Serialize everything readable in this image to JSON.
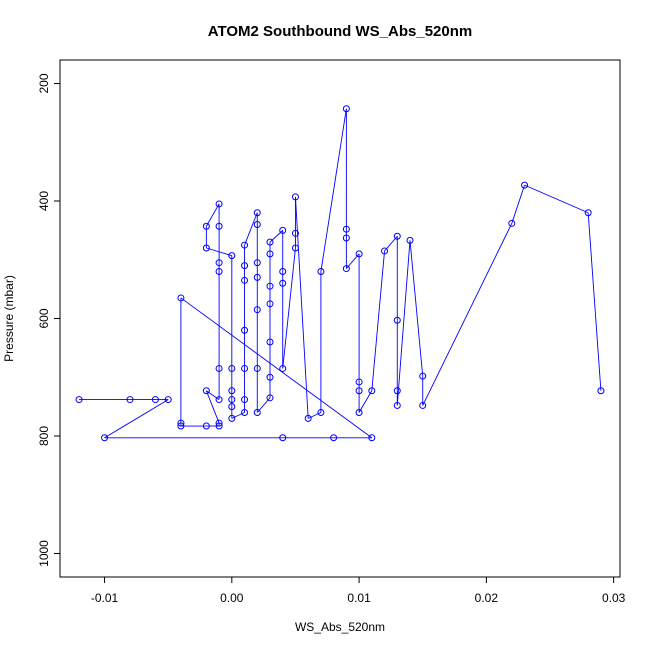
{
  "chart_data": {
    "type": "scatter",
    "title": "ATOM2 Southbound WS_Abs_520nm",
    "xlabel": "WS_Abs_520nm",
    "ylabel": "Pressure (mbar)",
    "xlim": [
      -0.0135,
      0.0305
    ],
    "ylim": [
      1040,
      160
    ],
    "y_reversed": true,
    "x_ticks": [
      -0.01,
      0.0,
      0.01,
      0.02,
      0.03
    ],
    "x_tick_labels": [
      "-0.01",
      "0.00",
      "0.01",
      "0.02",
      "0.03"
    ],
    "y_ticks": [
      200,
      400,
      600,
      800,
      1000
    ],
    "y_tick_labels": [
      "200",
      "400",
      "600",
      "800",
      "1000"
    ],
    "grid": false,
    "legend": "none",
    "series": [
      {
        "color": "#0000ff",
        "marker": "open-circle",
        "points": [
          [
            -0.012,
            738
          ],
          [
            -0.008,
            738
          ],
          [
            -0.006,
            738
          ],
          [
            -0.005,
            738
          ],
          [
            -0.01,
            803
          ],
          [
            0.004,
            803
          ],
          [
            0.008,
            803
          ],
          [
            0.011,
            803
          ],
          [
            -0.004,
            565
          ],
          [
            -0.004,
            778
          ],
          [
            -0.004,
            783
          ],
          [
            -0.002,
            783
          ],
          [
            -0.001,
            783
          ],
          [
            -0.001,
            778
          ],
          [
            -0.002,
            723
          ],
          [
            -0.001,
            738
          ],
          [
            -0.001,
            685
          ],
          [
            -0.001,
            520
          ],
          [
            -0.001,
            505
          ],
          [
            -0.001,
            443
          ],
          [
            -0.001,
            405
          ],
          [
            -0.002,
            443
          ],
          [
            -0.002,
            480
          ],
          [
            0.0,
            493
          ],
          [
            0.0,
            685
          ],
          [
            0.0,
            723
          ],
          [
            0.0,
            738
          ],
          [
            0.0,
            750
          ],
          [
            0.0,
            770
          ],
          [
            0.001,
            760
          ],
          [
            0.001,
            738
          ],
          [
            0.001,
            685
          ],
          [
            0.001,
            620
          ],
          [
            0.001,
            535
          ],
          [
            0.001,
            510
          ],
          [
            0.001,
            475
          ],
          [
            0.002,
            420
          ],
          [
            0.002,
            440
          ],
          [
            0.002,
            505
          ],
          [
            0.002,
            530
          ],
          [
            0.002,
            585
          ],
          [
            0.002,
            685
          ],
          [
            0.002,
            760
          ],
          [
            0.003,
            735
          ],
          [
            0.003,
            700
          ],
          [
            0.003,
            640
          ],
          [
            0.003,
            575
          ],
          [
            0.003,
            545
          ],
          [
            0.003,
            490
          ],
          [
            0.003,
            470
          ],
          [
            0.004,
            450
          ],
          [
            0.004,
            520
          ],
          [
            0.004,
            540
          ],
          [
            0.004,
            685
          ],
          [
            0.005,
            480
          ],
          [
            0.005,
            455
          ],
          [
            0.005,
            393
          ],
          [
            0.006,
            770
          ],
          [
            0.007,
            760
          ],
          [
            0.007,
            520
          ],
          [
            0.009,
            243
          ],
          [
            0.009,
            448
          ],
          [
            0.009,
            463
          ],
          [
            0.009,
            515
          ],
          [
            0.01,
            490
          ],
          [
            0.01,
            708
          ],
          [
            0.01,
            723
          ],
          [
            0.01,
            760
          ],
          [
            0.011,
            723
          ],
          [
            0.012,
            485
          ],
          [
            0.013,
            460
          ],
          [
            0.013,
            603
          ],
          [
            0.013,
            723
          ],
          [
            0.013,
            748
          ],
          [
            0.014,
            467
          ],
          [
            0.015,
            698
          ],
          [
            0.015,
            748
          ],
          [
            0.022,
            438
          ],
          [
            0.023,
            373
          ],
          [
            0.028,
            420
          ],
          [
            0.029,
            723
          ]
        ]
      }
    ]
  }
}
